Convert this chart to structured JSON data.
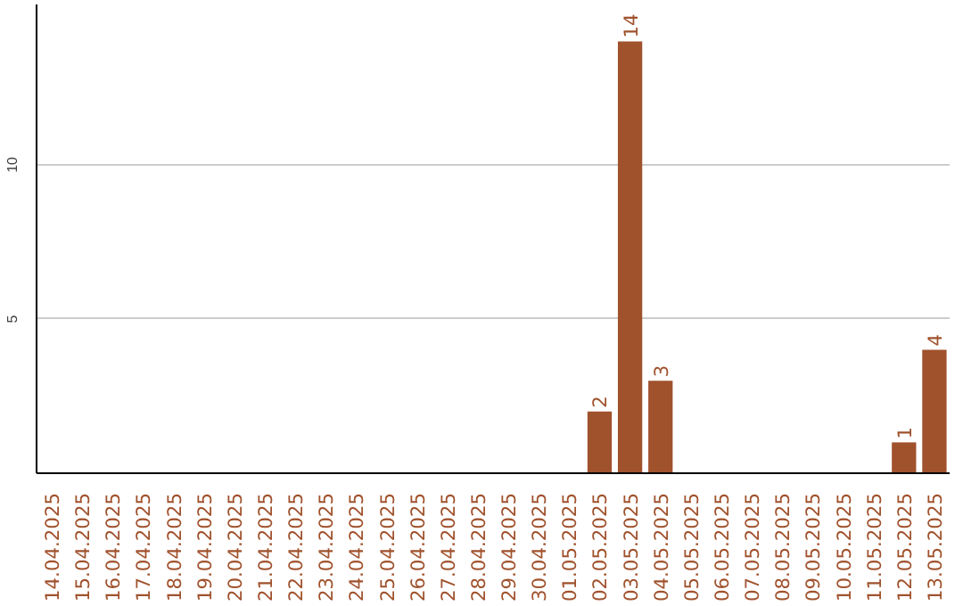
{
  "chart_data": {
    "type": "bar",
    "categories": [
      "14.04.2025",
      "15.04.2025",
      "16.04.2025",
      "17.04.2025",
      "18.04.2025",
      "19.04.2025",
      "20.04.2025",
      "21.04.2025",
      "22.04.2025",
      "23.04.2025",
      "24.04.2025",
      "25.04.2025",
      "26.04.2025",
      "27.04.2025",
      "28.04.2025",
      "29.04.2025",
      "30.04.2025",
      "01.05.2025",
      "02.05.2025",
      "03.05.2025",
      "04.05.2025",
      "05.05.2025",
      "06.05.2025",
      "07.05.2025",
      "08.05.2025",
      "09.05.2025",
      "10.05.2025",
      "11.05.2025",
      "12.05.2025",
      "13.05.2025"
    ],
    "values": [
      0,
      0,
      0,
      0,
      0,
      0,
      0,
      0,
      0,
      0,
      0,
      0,
      0,
      0,
      0,
      0,
      0,
      0,
      2,
      14,
      3,
      0,
      0,
      0,
      0,
      0,
      0,
      0,
      1,
      4
    ],
    "value_labels": [
      null,
      null,
      null,
      null,
      null,
      null,
      null,
      null,
      null,
      null,
      null,
      null,
      null,
      null,
      null,
      null,
      null,
      null,
      "2",
      "14",
      "3",
      null,
      null,
      null,
      null,
      null,
      null,
      null,
      "1",
      "4"
    ],
    "color": "#a0522d",
    "ylim": [
      0,
      15.2
    ],
    "yticks": [
      5,
      10
    ],
    "grid": "y"
  }
}
